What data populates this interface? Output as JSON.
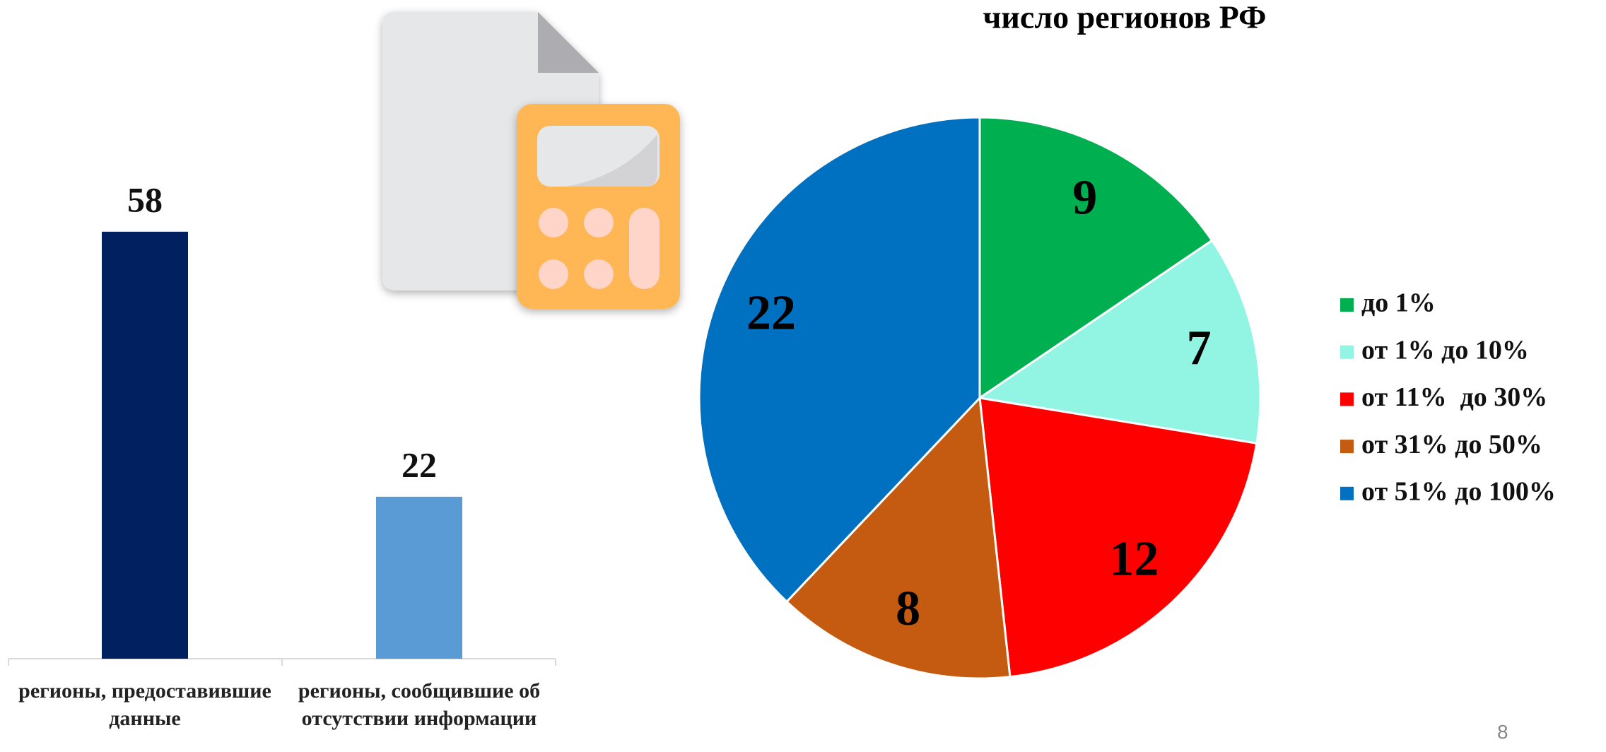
{
  "chart_data": [
    {
      "type": "bar",
      "categories": [
        "регионы, предоставившие данные",
        "регионы, сообщившие об отсутствии информации"
      ],
      "values": [
        58,
        22
      ],
      "colors": [
        "#002060",
        "#5b9bd5"
      ],
      "ylim": [
        0,
        60
      ]
    },
    {
      "type": "pie",
      "title": "число регионов РФ",
      "categories": [
        "до 1%",
        "от 1% до 10%",
        "от 11%  до 30%",
        "от 31% до 50%",
        "от 51% до 100%"
      ],
      "values": [
        9,
        7,
        12,
        8,
        22
      ],
      "colors": [
        "#00b050",
        "#92f5e3",
        "#ff0000",
        "#c55a11",
        "#0070c0"
      ],
      "legend": "right"
    }
  ],
  "page_number": "8"
}
